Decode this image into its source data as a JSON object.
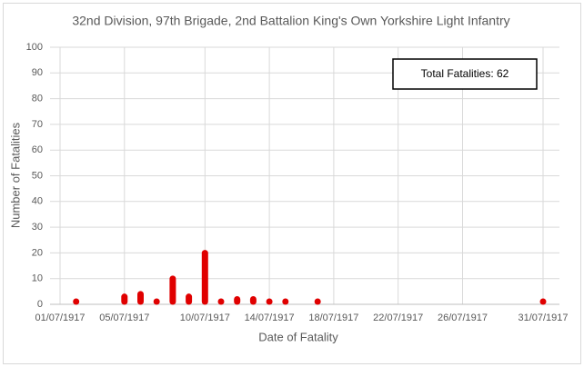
{
  "chart_data": {
    "type": "bar",
    "title": "32nd Division, 97th Brigade, 2nd Battalion King's Own Yorkshire Light Infantry",
    "x_label": "Date of Fatality",
    "y_label": "Number of Fatalities",
    "annotation": "Total Fatalities: 62",
    "x": [
      "02/07/1917",
      "05/07/1917",
      "06/07/1917",
      "07/07/1917",
      "08/07/1917",
      "09/07/1917",
      "10/07/1917",
      "11/07/1917",
      "12/07/1917",
      "13/07/1917",
      "14/07/1917",
      "15/07/1917",
      "17/07/1917",
      "31/07/1917"
    ],
    "values": [
      1,
      4,
      5,
      2,
      11,
      4,
      21,
      2,
      3,
      3,
      2,
      2,
      1,
      1
    ],
    "color": "#e00000",
    "xlim": [
      "01/07/1917",
      "31/07/1917"
    ],
    "xticks": [
      "01/07/1917",
      "05/07/1917",
      "10/07/1917",
      "14/07/1917",
      "18/07/1917",
      "22/07/1917",
      "26/07/1917",
      "31/07/1917"
    ],
    "ylim": [
      0,
      100
    ],
    "yticks": [
      0,
      10,
      20,
      30,
      40,
      50,
      60,
      70,
      80,
      90,
      100
    ],
    "grid": true
  }
}
